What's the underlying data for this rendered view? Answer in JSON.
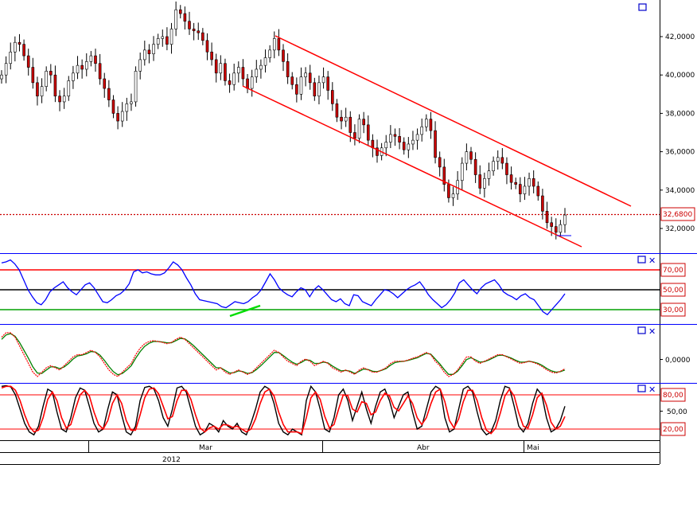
{
  "chart_data": {
    "type": "line",
    "date_axis": {
      "months": [
        "Mar",
        "Abr",
        "Mai"
      ],
      "year": "2012"
    },
    "price_panel": {
      "type": "candlestick",
      "y_ticks": [
        "42,0000",
        "40,0000",
        "38,0000",
        "36,0000",
        "34,0000",
        "32,0000"
      ],
      "ylim": [
        31.0,
        43.0
      ],
      "last_price_label": "32,6800",
      "last_price": 32.68,
      "closes": [
        40.0,
        40.6,
        41.2,
        41.7,
        41.6,
        41.0,
        40.4,
        39.6,
        38.9,
        39.4,
        40.2,
        40.0,
        38.9,
        38.6,
        38.9,
        39.7,
        40.1,
        40.5,
        40.3,
        40.7,
        41.0,
        40.6,
        39.8,
        39.3,
        38.7,
        38.0,
        37.6,
        38.1,
        38.5,
        38.6,
        40.2,
        40.8,
        41.3,
        41.1,
        41.6,
        41.9,
        42.0,
        41.6,
        42.4,
        43.4,
        43.2,
        42.8,
        42.4,
        42.3,
        42.2,
        41.8,
        41.2,
        40.8,
        40.1,
        40.6,
        39.7,
        39.5,
        40.1,
        40.4,
        39.8,
        39.3,
        39.9,
        40.3,
        40.5,
        40.9,
        41.3,
        41.9,
        41.3,
        40.7,
        39.9,
        39.5,
        39.0,
        39.9,
        40.1,
        39.6,
        38.9,
        39.6,
        39.9,
        39.2,
        38.5,
        37.8,
        37.6,
        37.8,
        37.0,
        36.7,
        37.7,
        37.4,
        36.6,
        36.2,
        35.8,
        36.2,
        36.5,
        36.9,
        36.8,
        36.5,
        36.1,
        36.4,
        36.6,
        36.9,
        37.3,
        37.7,
        37.1,
        35.7,
        35.2,
        34.3,
        33.6,
        33.8,
        34.5,
        35.4,
        36.0,
        35.6,
        34.8,
        34.1,
        34.6,
        35.0,
        35.5,
        35.7,
        35.4,
        34.8,
        34.4,
        34.3,
        33.8,
        34.2,
        34.6,
        34.2,
        33.7,
        32.9,
        32.3,
        32.1,
        31.8,
        32.2,
        32.7
      ],
      "channel_lines": [
        {
          "color": "#ff0000",
          "name": ""
        },
        {
          "color": "#ff0000",
          "name": ""
        }
      ]
    },
    "rsi_panel": {
      "type": "line",
      "color": "#0000ff",
      "levels": [
        {
          "value": 70,
          "label": "70,00",
          "color": "#ff0000"
        },
        {
          "value": 50,
          "label": "50,00",
          "color": "#000000"
        },
        {
          "value": 30,
          "label": "30,00",
          "color": "#00a000"
        }
      ],
      "values": [
        77,
        78,
        80,
        76,
        70,
        60,
        50,
        43,
        37,
        35,
        40,
        48,
        52,
        55,
        58,
        52,
        48,
        45,
        50,
        55,
        57,
        52,
        45,
        38,
        37,
        40,
        44,
        46,
        50,
        56,
        68,
        70,
        67,
        68,
        66,
        65,
        65,
        67,
        72,
        78,
        75,
        70,
        62,
        55,
        46,
        40,
        39,
        38,
        37,
        36,
        33,
        32,
        35,
        38,
        37,
        36,
        38,
        42,
        45,
        50,
        58,
        66,
        60,
        52,
        48,
        45,
        43,
        48,
        52,
        50,
        43,
        50,
        54,
        50,
        45,
        40,
        38,
        41,
        36,
        34,
        45,
        44,
        38,
        36,
        34,
        40,
        45,
        50,
        49,
        46,
        42,
        46,
        50,
        53,
        55,
        58,
        52,
        45,
        40,
        36,
        32,
        35,
        40,
        47,
        57,
        60,
        55,
        50,
        46,
        52,
        56,
        58,
        60,
        55,
        48,
        45,
        43,
        40,
        44,
        46,
        42,
        40,
        34,
        28,
        25,
        30,
        35,
        40,
        46
      ],
      "support_line": {
        "color": "#00dd00"
      }
    },
    "macd_panel": {
      "type": "line",
      "y_ticks": [
        "0,0000"
      ],
      "series": [
        {
          "color": "#ff0000",
          "values": [
            0.5,
            0.6,
            0.6,
            0.5,
            0.3,
            0.1,
            -0.1,
            -0.3,
            -0.4,
            -0.3,
            -0.2,
            -0.15,
            -0.2,
            -0.25,
            -0.15,
            -0.05,
            0.05,
            0.1,
            0.1,
            0.15,
            0.2,
            0.15,
            0.05,
            -0.1,
            -0.25,
            -0.35,
            -0.4,
            -0.3,
            -0.2,
            -0.1,
            0.1,
            0.25,
            0.35,
            0.4,
            0.42,
            0.4,
            0.38,
            0.35,
            0.38,
            0.45,
            0.5,
            0.45,
            0.35,
            0.25,
            0.15,
            0.05,
            -0.05,
            -0.15,
            -0.25,
            -0.2,
            -0.3,
            -0.35,
            -0.3,
            -0.25,
            -0.3,
            -0.35,
            -0.3,
            -0.2,
            -0.1,
            0.0,
            0.1,
            0.2,
            0.15,
            0.05,
            -0.05,
            -0.1,
            -0.15,
            -0.05,
            0.0,
            -0.05,
            -0.15,
            -0.1,
            -0.05,
            -0.1,
            -0.2,
            -0.25,
            -0.3,
            -0.25,
            -0.3,
            -0.35,
            -0.25,
            -0.2,
            -0.25,
            -0.3,
            -0.3,
            -0.25,
            -0.2,
            -0.1,
            -0.05,
            -0.05,
            -0.05,
            -0.02,
            0.02,
            0.05,
            0.1,
            0.15,
            0.1,
            -0.05,
            -0.15,
            -0.3,
            -0.4,
            -0.35,
            -0.25,
            -0.1,
            0.05,
            0.05,
            -0.05,
            -0.1,
            -0.05,
            0.0,
            0.05,
            0.1,
            0.1,
            0.05,
            0.0,
            -0.05,
            -0.1,
            -0.08,
            -0.05,
            -0.08,
            -0.12,
            -0.18,
            -0.25,
            -0.3,
            -0.32,
            -0.28,
            -0.22
          ]
        },
        {
          "color": "#008000",
          "values": [
            0.45,
            0.55,
            0.58,
            0.52,
            0.38,
            0.2,
            0.02,
            -0.18,
            -0.32,
            -0.33,
            -0.25,
            -0.18,
            -0.18,
            -0.22,
            -0.18,
            -0.1,
            0.0,
            0.07,
            0.09,
            0.12,
            0.17,
            0.16,
            0.09,
            -0.03,
            -0.17,
            -0.29,
            -0.36,
            -0.33,
            -0.25,
            -0.15,
            0.02,
            0.17,
            0.29,
            0.36,
            0.4,
            0.4,
            0.39,
            0.37,
            0.37,
            0.42,
            0.47,
            0.46,
            0.39,
            0.3,
            0.2,
            0.1,
            0.0,
            -0.1,
            -0.2,
            -0.2,
            -0.26,
            -0.32,
            -0.31,
            -0.27,
            -0.29,
            -0.33,
            -0.31,
            -0.24,
            -0.15,
            -0.05,
            0.05,
            0.15,
            0.15,
            0.08,
            0.0,
            -0.07,
            -0.12,
            -0.08,
            -0.02,
            -0.03,
            -0.1,
            -0.1,
            -0.07,
            -0.09,
            -0.16,
            -0.22,
            -0.27,
            -0.26,
            -0.28,
            -0.33,
            -0.28,
            -0.23,
            -0.24,
            -0.28,
            -0.29,
            -0.26,
            -0.22,
            -0.14,
            -0.08,
            -0.06,
            -0.05,
            -0.03,
            0.0,
            0.03,
            0.08,
            0.13,
            0.11,
            0.0,
            -0.11,
            -0.24,
            -0.35,
            -0.35,
            -0.28,
            -0.15,
            -0.01,
            0.03,
            -0.02,
            -0.07,
            -0.06,
            -0.02,
            0.03,
            0.08,
            0.09,
            0.06,
            0.02,
            -0.03,
            -0.07,
            -0.07,
            -0.05,
            -0.07,
            -0.1,
            -0.15,
            -0.22,
            -0.27,
            -0.3,
            -0.29,
            -0.25
          ]
        }
      ]
    },
    "stoch_panel": {
      "type": "line",
      "y_ticks": [
        "50,00"
      ],
      "levels": [
        {
          "value": 80,
          "label": "80,00",
          "color": "#ff0000"
        },
        {
          "value": 20,
          "label": "20,00",
          "color": "#ff0000"
        }
      ],
      "series": [
        {
          "color": "#000000",
          "values": [
            95,
            96,
            94,
            80,
            55,
            30,
            15,
            10,
            25,
            60,
            90,
            85,
            50,
            20,
            15,
            40,
            75,
            92,
            88,
            60,
            30,
            15,
            20,
            55,
            85,
            80,
            45,
            15,
            10,
            25,
            70,
            93,
            95,
            90,
            70,
            40,
            25,
            55,
            92,
            95,
            85,
            55,
            25,
            10,
            15,
            30,
            25,
            15,
            35,
            25,
            20,
            30,
            15,
            10,
            30,
            55,
            85,
            95,
            90,
            65,
            30,
            15,
            10,
            20,
            15,
            10,
            70,
            95,
            85,
            55,
            20,
            15,
            40,
            80,
            90,
            70,
            35,
            60,
            85,
            55,
            30,
            60,
            85,
            90,
            70,
            40,
            60,
            80,
            85,
            50,
            20,
            25,
            55,
            85,
            95,
            90,
            40,
            15,
            20,
            55,
            90,
            95,
            85,
            50,
            20,
            10,
            15,
            35,
            70,
            95,
            92,
            60,
            25,
            15,
            30,
            65,
            90,
            80,
            40,
            15,
            20,
            35,
            60
          ]
        },
        {
          "color": "#ff0000",
          "values": [
            92,
            95,
            95,
            88,
            70,
            45,
            25,
            15,
            18,
            40,
            72,
            85,
            70,
            40,
            22,
            28,
            55,
            80,
            88,
            78,
            50,
            28,
            20,
            35,
            65,
            80,
            65,
            35,
            18,
            18,
            45,
            75,
            90,
            92,
            82,
            60,
            38,
            42,
            70,
            88,
            88,
            72,
            45,
            22,
            15,
            22,
            25,
            20,
            28,
            27,
            23,
            25,
            20,
            15,
            20,
            38,
            65,
            85,
            90,
            78,
            50,
            28,
            15,
            15,
            15,
            12,
            40,
            75,
            85,
            72,
            42,
            22,
            28,
            55,
            80,
            78,
            55,
            50,
            68,
            65,
            45,
            50,
            70,
            83,
            78,
            58,
            52,
            65,
            78,
            65,
            40,
            28,
            40,
            65,
            85,
            90,
            68,
            35,
            22,
            38,
            68,
            88,
            88,
            70,
            40,
            18,
            12,
            22,
            48,
            78,
            90,
            78,
            48,
            25,
            22,
            45,
            75,
            83,
            62,
            32,
            20,
            25,
            42
          ]
        }
      ]
    }
  }
}
